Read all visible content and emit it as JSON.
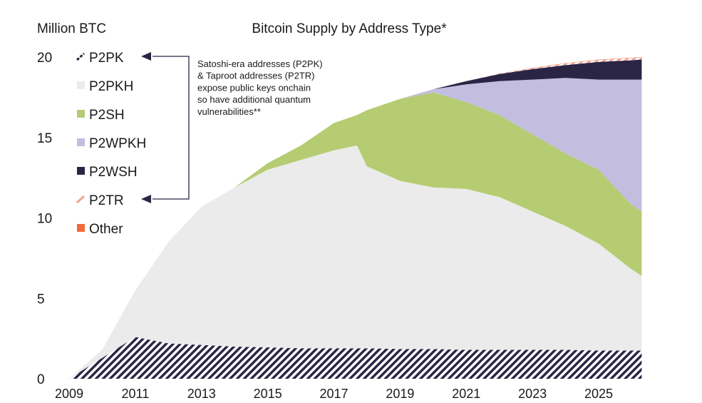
{
  "chart_data": {
    "type": "area",
    "stacked": true,
    "title": "Bitcoin Supply by Address Type*",
    "ylabel": "Million BTC",
    "xlabel": "",
    "ylim": [
      0,
      20
    ],
    "xlim": [
      2009,
      2026.3
    ],
    "yticks": [
      "0",
      "5",
      "10",
      "15",
      "20"
    ],
    "xticks": [
      "2009",
      "2011",
      "2013",
      "2015",
      "2017",
      "2019",
      "2021",
      "2023",
      "2025"
    ],
    "grid": false,
    "legend_placement": "top-left",
    "annotation": [
      "Satoshi-era addresses (P2PK)",
      "& Taproot addresses (P2TR)",
      "expose public keys onchain",
      "so have additional quantum",
      "vulnerabilities**"
    ],
    "x": [
      2009,
      2010,
      2011,
      2012,
      2013,
      2014,
      2015,
      2016,
      2017,
      2017.7,
      2018,
      2019,
      2020,
      2021,
      2022,
      2023,
      2024,
      2025,
      2026,
      2026.3
    ],
    "series": [
      {
        "name": "P2PK",
        "color": "#2b2545",
        "pattern": "hatch",
        "values": [
          0,
          1.3,
          2.6,
          2.2,
          2.1,
          2.0,
          1.95,
          1.9,
          1.9,
          1.9,
          1.9,
          1.85,
          1.85,
          1.8,
          1.8,
          1.8,
          1.8,
          1.75,
          1.75,
          1.75
        ]
      },
      {
        "name": "P2PKH",
        "color": "#ebebeb",
        "values": [
          0,
          0.5,
          2.9,
          6.3,
          8.6,
          9.9,
          11.05,
          11.7,
          12.3,
          12.6,
          11.3,
          10.45,
          10.05,
          10.0,
          9.5,
          8.6,
          7.7,
          6.65,
          5.05,
          4.65
        ]
      },
      {
        "name": "P2SH",
        "color": "#b5cc72",
        "values": [
          0,
          0,
          0,
          0,
          0,
          0,
          0.4,
          0.9,
          1.7,
          1.9,
          3.5,
          5.1,
          5.9,
          5.4,
          5.1,
          4.8,
          4.5,
          4.6,
          4.0,
          4.0
        ]
      },
      {
        "name": "P2WPKH",
        "color": "#c3bde0",
        "values": [
          0,
          0,
          0,
          0,
          0,
          0,
          0,
          0,
          0,
          0,
          0,
          0,
          0.2,
          1.1,
          2.1,
          3.4,
          4.7,
          5.6,
          7.8,
          8.2
        ]
      },
      {
        "name": "P2WSH",
        "color": "#2b2545",
        "values": [
          0,
          0,
          0,
          0,
          0,
          0,
          0,
          0,
          0,
          0,
          0,
          0,
          0,
          0.2,
          0.45,
          0.65,
          0.8,
          1.1,
          1.2,
          1.25
        ]
      },
      {
        "name": "P2TR",
        "color": "#f2a08f",
        "pattern": "hatch",
        "values": [
          0,
          0,
          0,
          0,
          0,
          0,
          0,
          0,
          0,
          0,
          0,
          0,
          0,
          0,
          0.03,
          0.05,
          0.1,
          0.12,
          0.13,
          0.13
        ]
      },
      {
        "name": "Other",
        "color": "#f36a3c",
        "values": [
          0,
          0,
          0,
          0,
          0,
          0,
          0,
          0,
          0,
          0,
          0,
          0,
          0,
          0,
          0,
          0.02,
          0.02,
          0.02,
          0.02,
          0.02
        ]
      }
    ]
  }
}
